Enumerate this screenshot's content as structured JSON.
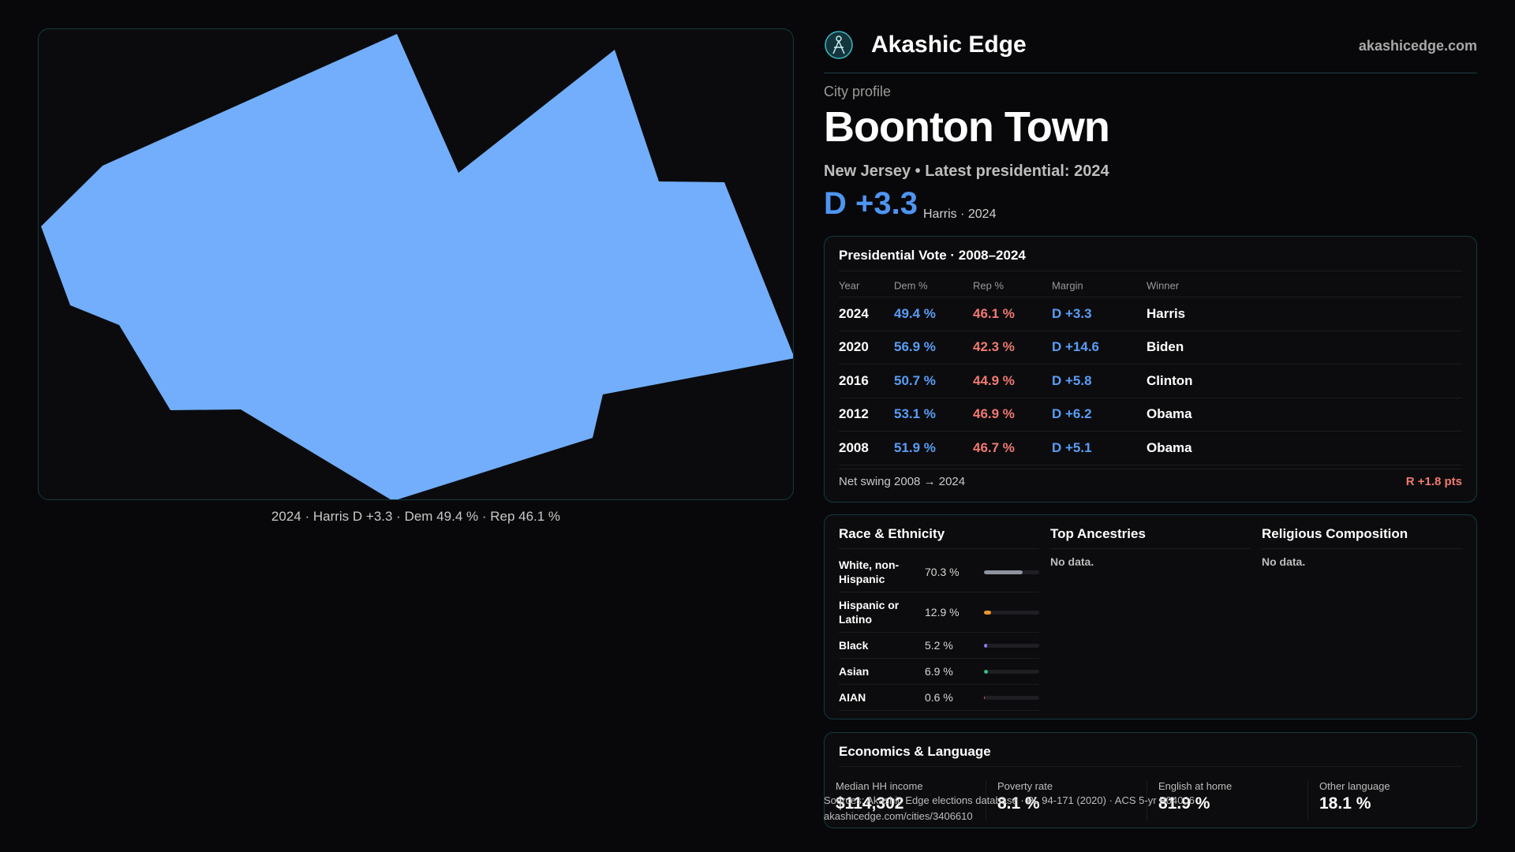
{
  "brand": {
    "name": "Akashic Edge",
    "url": "akashicedge.com",
    "logo": "akashic-edge-logo"
  },
  "map": {
    "caption": "2024 · Harris D +3.3 · Dem 49.4 % · Rep 46.1 %",
    "fill_color": "#72aefc"
  },
  "profile": {
    "eyebrow": "City profile",
    "title": "Boonton Town",
    "subtitle": "New Jersey • Latest presidential: 2024",
    "margin": "D +3.3",
    "margin_note": "Harris · 2024"
  },
  "vote": {
    "title": "Presidential Vote · 2008–2024",
    "columns": {
      "year": "Year",
      "dem": "Dem %",
      "rep": "Rep %",
      "margin": "Margin",
      "winner": "Winner"
    },
    "rows": [
      {
        "year": "2024",
        "dem": "49.4 %",
        "rep": "46.1 %",
        "margin": "D +3.3",
        "winner": "Harris"
      },
      {
        "year": "2020",
        "dem": "56.9 %",
        "rep": "42.3 %",
        "margin": "D +14.6",
        "winner": "Biden"
      },
      {
        "year": "2016",
        "dem": "50.7 %",
        "rep": "44.9 %",
        "margin": "D +5.8",
        "winner": "Clinton"
      },
      {
        "year": "2012",
        "dem": "53.1 %",
        "rep": "46.9 %",
        "margin": "D +6.2",
        "winner": "Obama"
      },
      {
        "year": "2008",
        "dem": "51.9 %",
        "rep": "46.7 %",
        "margin": "D +5.1",
        "winner": "Obama"
      }
    ],
    "swing_label": "Net swing 2008 → 2024",
    "swing_value": "R +1.8 pts",
    "colors": {
      "dem": "#5a9df5",
      "rep": "#f07a72"
    }
  },
  "race": {
    "title": "Race & Ethnicity",
    "rows": [
      {
        "name": "White, non-Hispanic",
        "pct": "70.3 %",
        "share": 0.703,
        "color": "#8e949f"
      },
      {
        "name": "Hispanic or Latino",
        "pct": "12.9 %",
        "share": 0.129,
        "color": "#e8962e"
      },
      {
        "name": "Black",
        "pct": "5.2 %",
        "share": 0.052,
        "color": "#8b7cf6"
      },
      {
        "name": "Asian",
        "pct": "6.9 %",
        "share": 0.069,
        "color": "#2ec27e"
      },
      {
        "name": "AIAN",
        "pct": "0.6 %",
        "share": 0.006,
        "color": "#e05a9a"
      }
    ]
  },
  "ancestries": {
    "title": "Top Ancestries",
    "empty": "No data."
  },
  "religion": {
    "title": "Religious Composition",
    "empty": "No data."
  },
  "economics": {
    "title": "Economics & Language",
    "stats": [
      {
        "label": "Median HH income",
        "value": "$114,302"
      },
      {
        "label": "Poverty rate",
        "value": "8.1 %"
      },
      {
        "label": "English at home",
        "value": "81.9 %"
      },
      {
        "label": "Other language",
        "value": "18.1 %"
      }
    ]
  },
  "source": {
    "line1": "Sources: Akashic Edge elections database · PL 94-171 (2020) · ACS 5-yr B04006",
    "line2": "akashicedge.com/cities/3406610"
  }
}
